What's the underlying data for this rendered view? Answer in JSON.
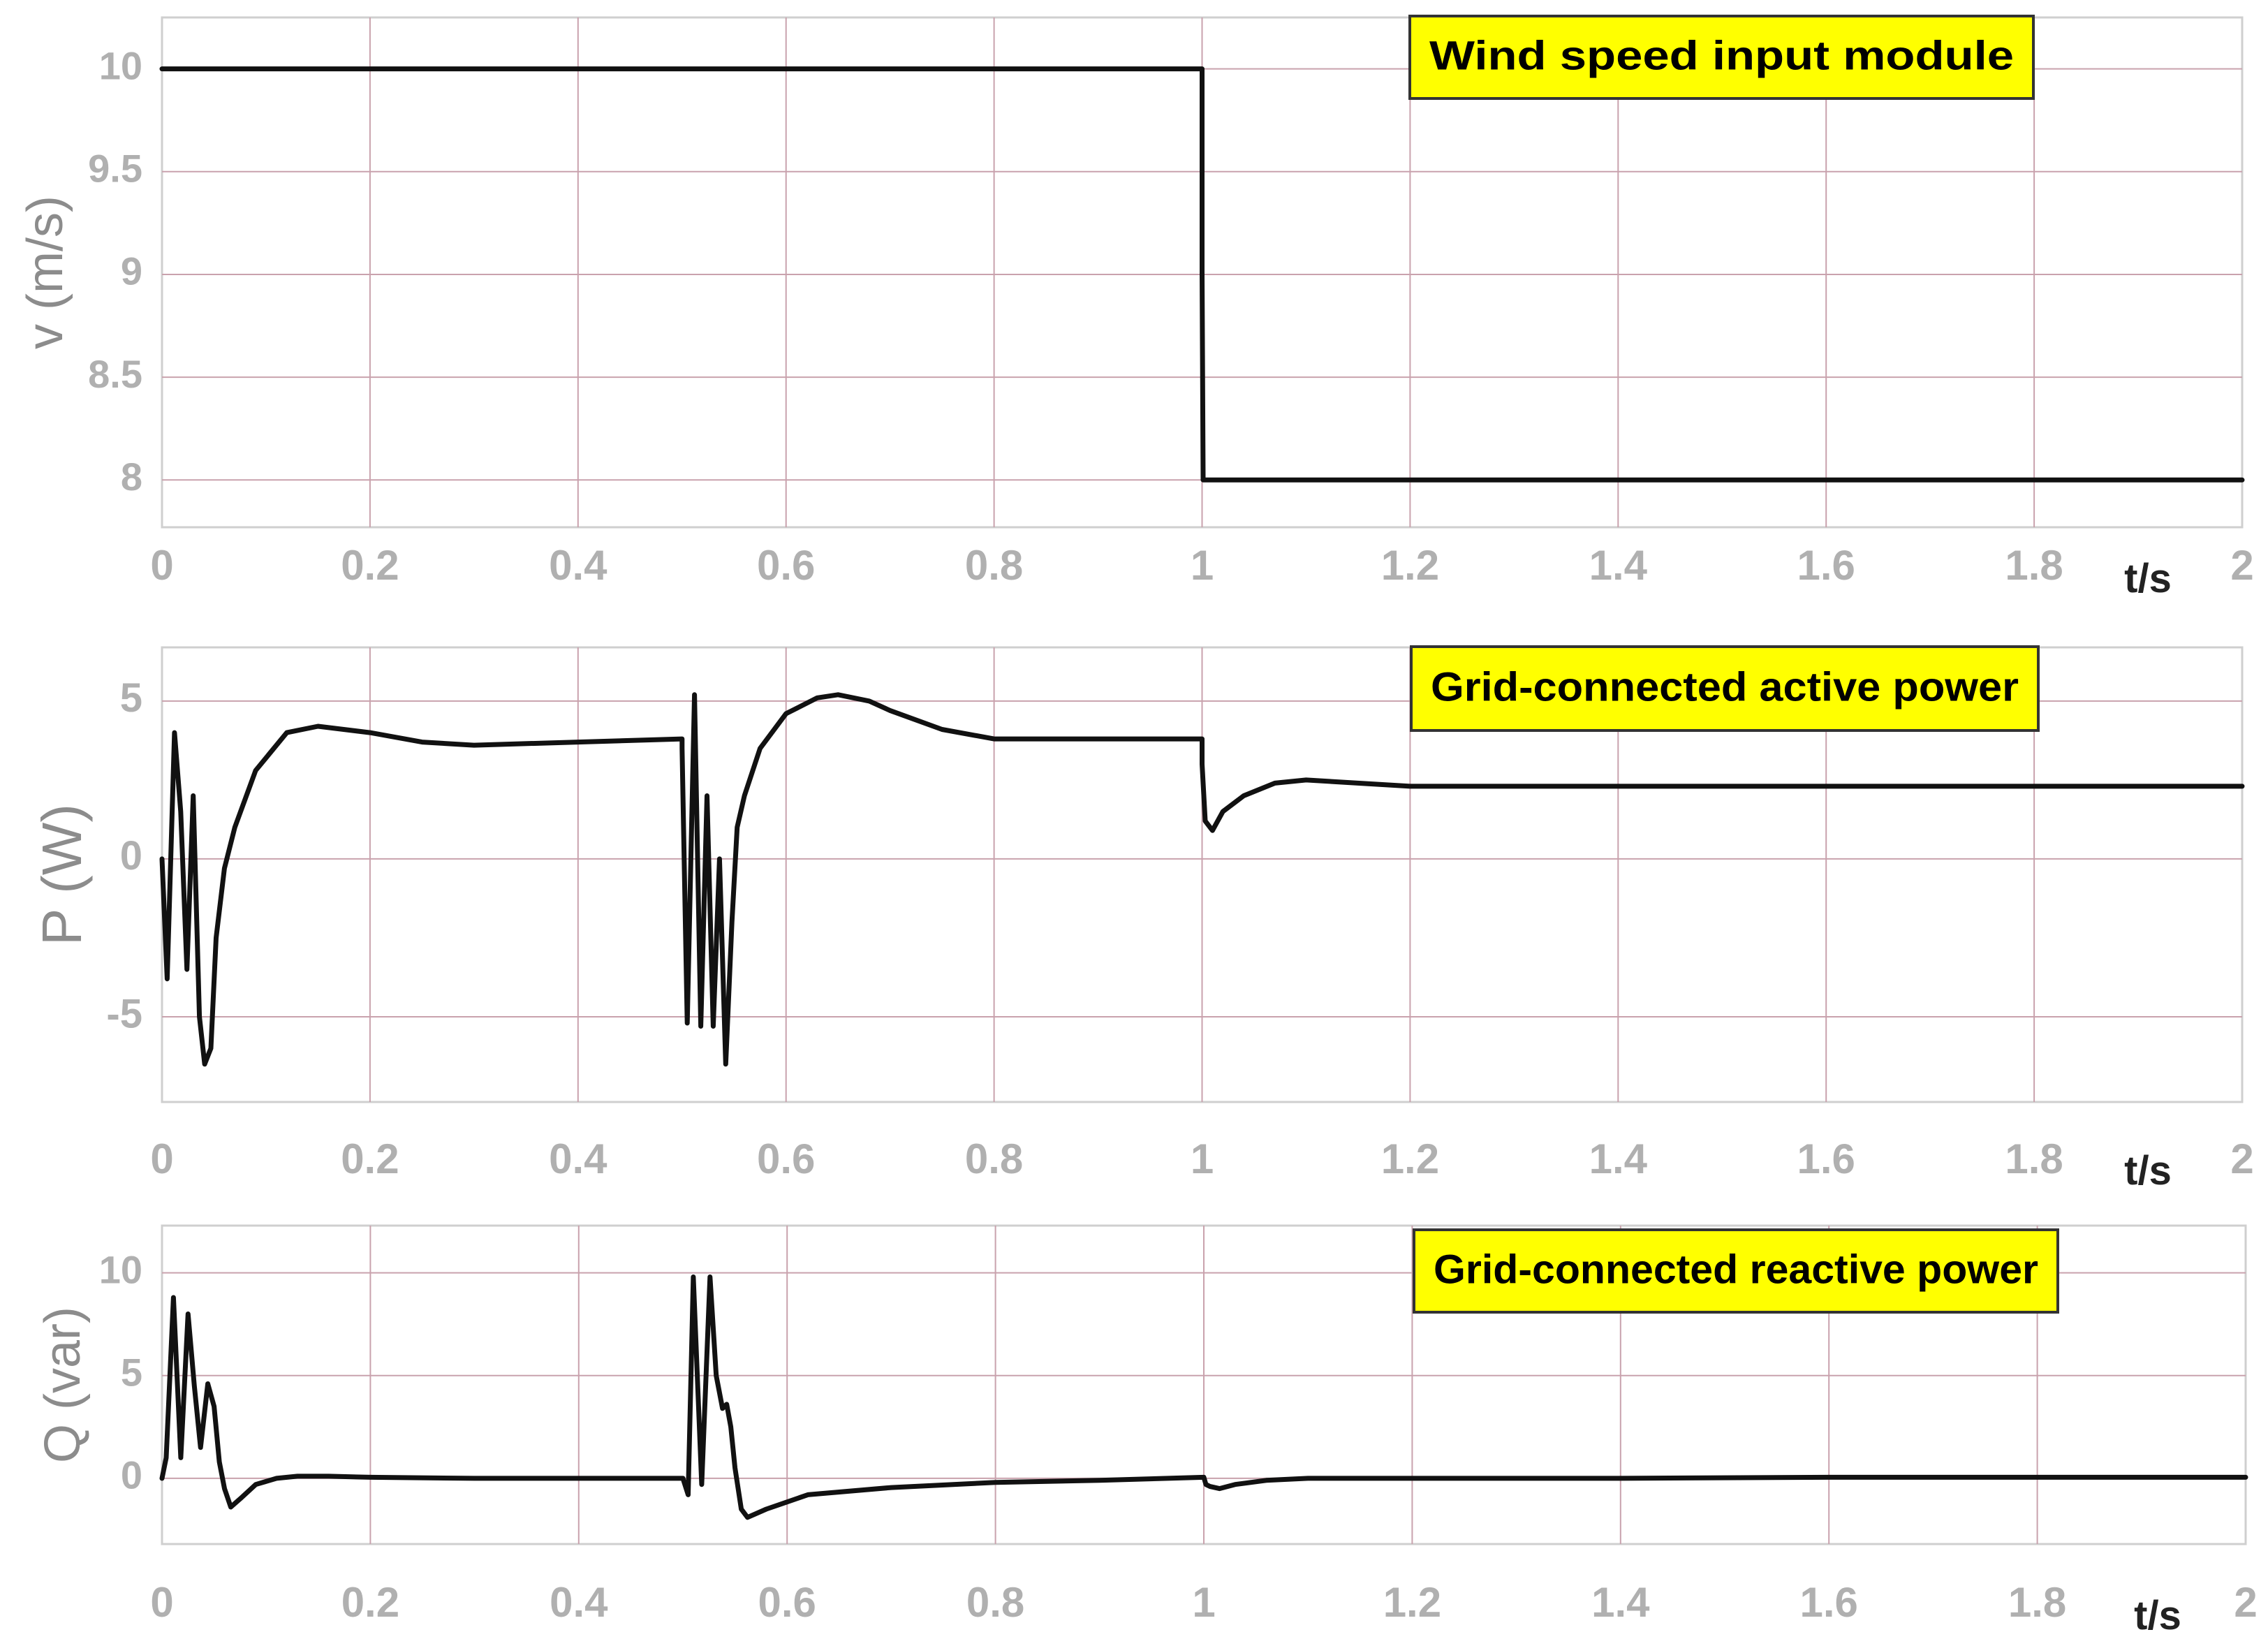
{
  "colors": {
    "background": "#ffffff",
    "grid": "#c9a2ad",
    "axes": "#cfcfcf",
    "line": "#111111",
    "tick_text": "#b0b0b0",
    "ylabel_text": "#8c8c8c",
    "annotation_fill": "#ffff00",
    "annotation_border": "#333333"
  },
  "chart_data": [
    {
      "type": "line",
      "ylabel": "v (m/s)",
      "xlabel": "t/s",
      "annotation": "Wind speed input module",
      "xlim": [
        0,
        2
      ],
      "ylim": [
        7.77,
        10.25
      ],
      "xticks": [
        "0",
        "0.2",
        "0.4",
        "0.6",
        "0.8",
        "1",
        "1.2",
        "1.4",
        "1.6",
        "1.8",
        "2"
      ],
      "yticks": [
        "8",
        "8.5",
        "9",
        "9.5",
        "10"
      ],
      "grid": true,
      "series": [
        {
          "x": [
            0,
            1.0,
            1.0,
            1.001,
            2.0
          ],
          "y": [
            10,
            10,
            9.0,
            8.0,
            8.0
          ]
        }
      ]
    },
    {
      "type": "line",
      "ylabel": "P (W)",
      "xlabel": "t/s",
      "annotation": "Grid-connected active power",
      "xlim": [
        0,
        2
      ],
      "ylim": [
        -7.7,
        6.7
      ],
      "xticks": [
        "0",
        "0.2",
        "0.4",
        "0.6",
        "0.8",
        "1",
        "1.2",
        "1.4",
        "1.6",
        "1.8",
        "2"
      ],
      "yticks": [
        "-5",
        "0",
        "5"
      ],
      "grid": true,
      "series": [
        {
          "x": [
            0,
            0.005,
            0.012,
            0.018,
            0.024,
            0.03,
            0.036,
            0.041,
            0.047,
            0.052,
            0.06,
            0.07,
            0.09,
            0.12,
            0.15,
            0.2,
            0.25,
            0.3,
            0.4,
            0.5,
            0.5,
            0.505,
            0.512,
            0.518,
            0.524,
            0.53,
            0.536,
            0.542,
            0.548,
            0.553,
            0.56,
            0.575,
            0.6,
            0.63,
            0.65,
            0.68,
            0.7,
            0.75,
            0.8,
            0.9,
            1.0,
            1.0,
            1.003,
            1.01,
            1.02,
            1.04,
            1.07,
            1.1,
            1.2,
            1.4,
            1.6,
            1.8,
            2.0
          ],
          "y": [
            0,
            -3.8,
            4.0,
            1.5,
            -3.5,
            2.0,
            -5.0,
            -6.5,
            -6.0,
            -2.5,
            -0.3,
            1.0,
            2.8,
            4.0,
            4.2,
            4.0,
            3.7,
            3.6,
            3.7,
            3.8,
            3.5,
            -5.2,
            5.2,
            -5.3,
            2.0,
            -5.3,
            0.0,
            -6.5,
            -2.0,
            1.0,
            2.0,
            3.5,
            4.6,
            5.1,
            5.2,
            5.0,
            4.7,
            4.1,
            3.8,
            3.8,
            3.8,
            3.0,
            1.2,
            0.9,
            1.5,
            2.0,
            2.4,
            2.5,
            2.3,
            2.3,
            2.3,
            2.3,
            2.3
          ]
        }
      ]
    },
    {
      "type": "line",
      "ylabel": "Q (var)",
      "xlabel": "t/s",
      "annotation": "Grid-connected reactive power",
      "xlim": [
        0,
        2
      ],
      "ylim": [
        -3.2,
        12.3
      ],
      "xticks": [
        "0",
        "0.2",
        "0.4",
        "0.6",
        "0.8",
        "1",
        "1.2",
        "1.4",
        "1.6",
        "1.8",
        "2"
      ],
      "yticks": [
        "0",
        "5",
        "10"
      ],
      "grid": true,
      "series": [
        {
          "x": [
            0,
            0.004,
            0.011,
            0.018,
            0.025,
            0.031,
            0.037,
            0.044,
            0.05,
            0.055,
            0.06,
            0.066,
            0.075,
            0.09,
            0.11,
            0.13,
            0.16,
            0.2,
            0.3,
            0.4,
            0.5,
            0.505,
            0.51,
            0.518,
            0.526,
            0.532,
            0.538,
            0.542,
            0.546,
            0.55,
            0.556,
            0.562,
            0.58,
            0.62,
            0.7,
            0.8,
            0.9,
            1.0,
            1.002,
            1.006,
            1.015,
            1.03,
            1.06,
            1.1,
            1.2,
            1.4,
            1.6,
            1.8,
            2.0
          ],
          "y": [
            0,
            1.0,
            8.8,
            1.0,
            8.0,
            4.5,
            1.5,
            4.6,
            3.5,
            0.8,
            -0.5,
            -1.4,
            -1.0,
            -0.3,
            0.0,
            0.1,
            0.1,
            0.05,
            0.0,
            0.0,
            0.0,
            -0.8,
            9.8,
            -0.3,
            9.8,
            5.0,
            3.4,
            3.6,
            2.5,
            0.5,
            -1.5,
            -1.9,
            -1.5,
            -0.8,
            -0.45,
            -0.2,
            -0.1,
            0.05,
            -0.3,
            -0.4,
            -0.5,
            -0.3,
            -0.1,
            0.0,
            0.0,
            0.0,
            0.05,
            0.05,
            0.05
          ]
        }
      ]
    }
  ]
}
